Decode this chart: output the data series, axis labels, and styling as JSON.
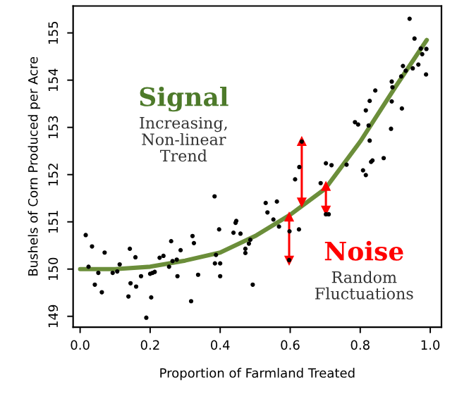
{
  "chart_data": {
    "type": "scatter",
    "xlabel": "Proportion of Farmland Treated",
    "ylabel": "Bushels of Corn Produced per Acre",
    "annotations": [
      "Signal",
      "Increasing,\nNon-linear\nTrend",
      "Noise",
      "Random\nFluctuations"
    ],
    "xlim": [
      -0.02,
      1.032
    ],
    "ylim": [
      148.77,
      155.57
    ],
    "xticks": [
      {
        "value": 0,
        "label": "0.0"
      },
      0.2,
      0.4,
      0.6,
      0.8,
      {
        "value": 1,
        "label": "1.0"
      }
    ],
    "yticks": [
      149,
      150,
      151,
      152,
      153,
      154,
      155
    ],
    "grid": false,
    "legend": false,
    "series": [
      {
        "color": "#000000",
        "marker": "circle",
        "x": [
          0.016,
          0.024,
          0.034,
          0.042,
          0.052,
          0.062,
          0.07,
          0.093,
          0.106,
          0.113,
          0.138,
          0.142,
          0.144,
          0.16,
          0.158,
          0.174,
          0.189,
          0.2,
          0.203,
          0.207,
          0.213,
          0.227,
          0.238,
          0.254,
          0.26,
          0.264,
          0.278,
          0.287,
          0.276,
          0.317,
          0.321,
          0.325,
          0.337,
          0.384,
          0.388,
          0.385,
          0.397,
          0.4,
          0.4,
          0.438,
          0.446,
          0.444,
          0.458,
          0.472,
          0.472,
          0.482,
          0.493,
          0.486,
          0.53,
          0.535,
          0.552,
          0.562,
          0.568,
          0.614,
          0.626,
          0.625,
          0.633,
          0.598,
          0.597,
          0.687,
          0.702,
          0.702,
          0.71,
          0.718,
          0.761,
          0.785,
          0.794,
          0.808,
          0.816,
          0.816,
          0.827,
          0.824,
          0.827,
          0.831,
          0.835,
          0.843,
          0.867,
          0.888,
          0.89,
          0.892,
          0.89,
          0.919,
          0.917,
          0.922,
          0.93,
          0.941,
          0.95,
          0.955,
          0.966,
          0.973,
          0.977,
          0.989,
          0.988
        ],
        "values": [
          150.72,
          150.05,
          150.48,
          149.67,
          149.92,
          149.51,
          150.35,
          149.92,
          149.95,
          150.1,
          149.42,
          150.43,
          149.7,
          149.63,
          150.25,
          149.85,
          148.97,
          149.9,
          149.4,
          149.92,
          149.94,
          150.24,
          150.28,
          150.05,
          150.59,
          150.17,
          149.85,
          150.4,
          150.2,
          149.32,
          150.7,
          150.55,
          149.88,
          151.54,
          150.3,
          150.12,
          150.84,
          150.12,
          149.85,
          150.77,
          151.02,
          150.98,
          150.75,
          150.43,
          150.34,
          150.54,
          149.67,
          150.62,
          151.4,
          151.2,
          151.05,
          151.43,
          150.9,
          151.9,
          152.16,
          150.84,
          152.7,
          150.8,
          150.19,
          151.82,
          152.24,
          151.16,
          151.16,
          152.2,
          152.21,
          153.11,
          153.06,
          152.09,
          151.99,
          153.36,
          153.56,
          153.04,
          152.72,
          152.27,
          152.3,
          153.78,
          152.35,
          152.97,
          153.55,
          153.85,
          153.97,
          153.4,
          154.08,
          154.3,
          154.2,
          155.3,
          154.25,
          154.88,
          154.33,
          154.67,
          154.55,
          154.66,
          154.12
        ]
      },
      {
        "type": "line",
        "color": "#6b8e3a",
        "marker": "none",
        "x": [
          0.0,
          0.1,
          0.2,
          0.3,
          0.4,
          0.5,
          0.6,
          0.7,
          0.8,
          0.9,
          0.99
        ],
        "values": [
          150.0,
          150.0,
          150.05,
          150.18,
          150.35,
          150.7,
          151.15,
          151.7,
          152.7,
          153.85,
          154.85
        ]
      },
      {
        "type": "line",
        "color": "#ff0000",
        "marker": "triangle",
        "x": [
          0.633,
          0.633
        ],
        "values": [
          151.42,
          152.7
        ]
      },
      {
        "type": "line",
        "color": "#ff0000",
        "marker": "triangle",
        "x": [
          0.702,
          0.702
        ],
        "values": [
          151.25,
          151.75
        ]
      },
      {
        "type": "line",
        "color": "#ff0000",
        "marker": "triangle",
        "x": [
          0.597,
          0.597
        ],
        "values": [
          150.19,
          151.1
        ]
      }
    ]
  }
}
